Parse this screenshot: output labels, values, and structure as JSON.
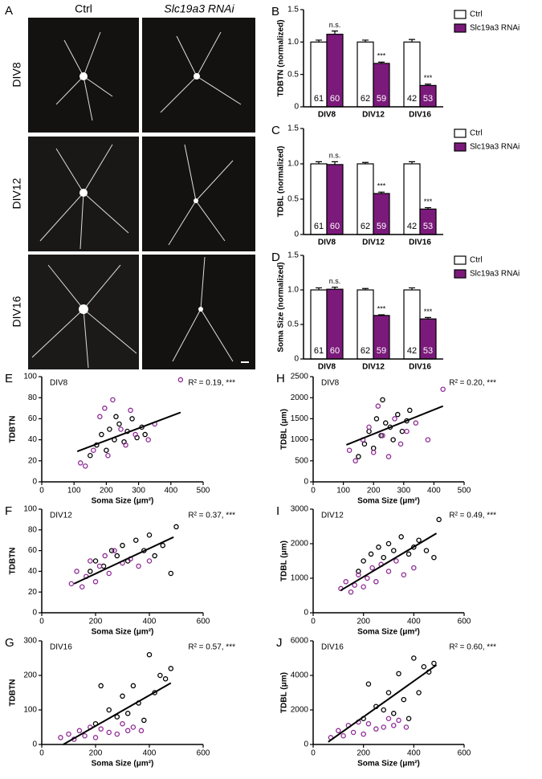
{
  "image_panel": {
    "label": "A",
    "columns": [
      "Ctrl",
      "Slc19a3 RNAi"
    ],
    "rows": [
      "DIV8",
      "DIV12",
      "DIV16"
    ]
  },
  "chart_data": [
    {
      "type": "bar",
      "label": "B",
      "ylabel": "TDBTN (normalized)",
      "categories": [
        "DIV8",
        "DIV12",
        "DIV16"
      ],
      "series": [
        {
          "name": "Ctrl",
          "color": "#ffffff",
          "values": [
            1,
            1,
            1
          ],
          "errors": [
            0.03,
            0.03,
            0.04
          ],
          "counts": [
            61,
            62,
            42
          ]
        },
        {
          "name": "Slc19a3 RNAi",
          "color": "#7b1a7b",
          "values": [
            1.12,
            0.67,
            0.33
          ],
          "errors": [
            0.05,
            0.02,
            0.02
          ],
          "counts": [
            60,
            59,
            53
          ],
          "annotations": [
            "n.s.",
            "***",
            "***"
          ]
        }
      ],
      "ylim": [
        0,
        1.5
      ],
      "yticks": [
        0,
        0.5,
        {
          "value": 1,
          "label": "1.0"
        },
        1.5
      ],
      "legend": "right"
    },
    {
      "type": "bar",
      "label": "C",
      "ylabel": "TDBL (normalized)",
      "categories": [
        "DIV8",
        "DIV12",
        "DIV16"
      ],
      "series": [
        {
          "name": "Ctrl",
          "color": "#ffffff",
          "values": [
            1,
            1,
            1
          ],
          "errors": [
            0.03,
            0.02,
            0.03
          ],
          "counts": [
            61,
            62,
            42
          ]
        },
        {
          "name": "Slc19a3 RNAi",
          "color": "#7b1a7b",
          "values": [
            0.99,
            0.58,
            0.36
          ],
          "errors": [
            0.04,
            0.02,
            0.02
          ],
          "counts": [
            60,
            59,
            53
          ],
          "annotations": [
            "n.s.",
            "***",
            "***"
          ]
        }
      ],
      "ylim": [
        0,
        1.5
      ],
      "yticks": [
        0,
        0.5,
        {
          "value": 1,
          "label": "1.0"
        },
        1.5
      ],
      "legend": "right"
    },
    {
      "type": "bar",
      "label": "D",
      "ylabel": "Soma Size (normalized)",
      "categories": [
        "DIV8",
        "DIV12",
        "DIV16"
      ],
      "series": [
        {
          "name": "Ctrl",
          "color": "#ffffff",
          "values": [
            1,
            1,
            1
          ],
          "errors": [
            0.03,
            0.02,
            0.03
          ],
          "counts": [
            61,
            62,
            42
          ]
        },
        {
          "name": "Slc19a3 RNAi",
          "color": "#7b1a7b",
          "values": [
            1.01,
            0.63,
            0.58
          ],
          "errors": [
            0.03,
            0.01,
            0.02
          ],
          "counts": [
            60,
            59,
            53
          ],
          "annotations": [
            "n.s.",
            "***",
            "***"
          ]
        }
      ],
      "ylim": [
        0,
        1.5
      ],
      "yticks": [
        0,
        0.5,
        {
          "value": 1,
          "label": "1.0"
        },
        1.5
      ],
      "legend": "right"
    },
    {
      "type": "scatter",
      "label": "E",
      "title": "DIV8",
      "annotation": "R² = 0.19, ***",
      "xlabel": "Soma Size (μm²)",
      "ylabel": "TDBTN",
      "xlim": [
        0,
        500
      ],
      "xticks": [
        0,
        100,
        200,
        300,
        400,
        500
      ],
      "ylim": [
        0,
        100
      ],
      "yticks": [
        0,
        20,
        40,
        60,
        80,
        100
      ],
      "series": [
        {
          "color": "#000000",
          "x": [
            150,
            170,
            185,
            200,
            210,
            225,
            240,
            255,
            265,
            280,
            295,
            310,
            320,
            230
          ],
          "y": [
            25,
            35,
            45,
            30,
            50,
            40,
            55,
            38,
            48,
            60,
            42,
            52,
            45,
            62
          ]
        },
        {
          "color": "#8e2a95",
          "x": [
            120,
            135,
            160,
            180,
            195,
            205,
            220,
            245,
            260,
            275,
            290,
            330,
            350,
            430
          ],
          "y": [
            18,
            15,
            30,
            62,
            70,
            25,
            78,
            50,
            35,
            68,
            45,
            40,
            55,
            97
          ]
        }
      ],
      "fit": {
        "x": [
          110,
          430
        ],
        "y": [
          29,
          66
        ]
      }
    },
    {
      "type": "scatter",
      "label": "H",
      "title": "DIV8",
      "annotation": "R² = 0.20, ***",
      "xlabel": "Soma Size (μm²)",
      "ylabel": "TDBL (μm)",
      "xlim": [
        0,
        500
      ],
      "xticks": [
        0,
        100,
        200,
        300,
        400,
        500
      ],
      "ylim": [
        0,
        2500
      ],
      "yticks": [
        0,
        500,
        1000,
        1500,
        2000,
        2500
      ],
      "series": [
        {
          "color": "#000000",
          "x": [
            150,
            170,
            185,
            200,
            210,
            225,
            240,
            255,
            265,
            280,
            295,
            310,
            320,
            230
          ],
          "y": [
            600,
            900,
            1200,
            800,
            1500,
            1100,
            1400,
            1300,
            1000,
            1600,
            1200,
            1450,
            1700,
            1950
          ]
        },
        {
          "color": "#8e2a95",
          "x": [
            120,
            140,
            165,
            185,
            200,
            215,
            230,
            250,
            270,
            290,
            310,
            340,
            380,
            430
          ],
          "y": [
            750,
            500,
            1000,
            1300,
            700,
            1800,
            1100,
            600,
            1500,
            900,
            1200,
            1400,
            1000,
            2200
          ]
        }
      ],
      "fit": {
        "x": [
          110,
          430
        ],
        "y": [
          880,
          1800
        ]
      }
    },
    {
      "type": "scatter",
      "label": "F",
      "title": "DIV12",
      "annotation": "R² = 0.37, ***",
      "xlabel": "Soma Size (μm²)",
      "ylabel": "TDBTN",
      "xlim": [
        0,
        600
      ],
      "xticks": [
        0,
        200,
        400,
        600
      ],
      "ylim": [
        0,
        100
      ],
      "yticks": [
        0,
        20,
        40,
        60,
        80,
        100
      ],
      "series": [
        {
          "color": "#000000",
          "x": [
            180,
            200,
            230,
            260,
            280,
            300,
            320,
            350,
            380,
            400,
            420,
            450,
            480,
            500
          ],
          "y": [
            40,
            50,
            45,
            60,
            55,
            65,
            50,
            70,
            60,
            75,
            55,
            65,
            38,
            83
          ]
        },
        {
          "color": "#8e2a95",
          "x": [
            110,
            130,
            150,
            165,
            180,
            200,
            215,
            235,
            250,
            270,
            300,
            330,
            360,
            400
          ],
          "y": [
            28,
            40,
            25,
            35,
            50,
            30,
            45,
            55,
            38,
            60,
            48,
            52,
            45,
            50
          ]
        }
      ],
      "fit": {
        "x": [
          120,
          490
        ],
        "y": [
          28,
          73
        ]
      }
    },
    {
      "type": "scatter",
      "label": "I",
      "title": "DIV12",
      "annotation": "R² = 0.49, ***",
      "xlabel": "Soma Size (μm²)",
      "ylabel": "TDBL (μm)",
      "xlim": [
        0,
        600
      ],
      "xticks": [
        0,
        200,
        400,
        600
      ],
      "ylim": [
        0,
        3000
      ],
      "yticks": [
        0,
        1000,
        2000,
        3000
      ],
      "series": [
        {
          "color": "#000000",
          "x": [
            180,
            200,
            230,
            260,
            280,
            300,
            320,
            350,
            380,
            400,
            420,
            450,
            480,
            500
          ],
          "y": [
            1200,
            1500,
            1700,
            1900,
            1600,
            2000,
            1800,
            2200,
            1700,
            1900,
            2100,
            1800,
            1600,
            2700
          ]
        },
        {
          "color": "#8e2a95",
          "x": [
            110,
            130,
            150,
            165,
            180,
            200,
            215,
            235,
            250,
            270,
            300,
            330,
            360,
            400
          ],
          "y": [
            700,
            900,
            600,
            800,
            1100,
            750,
            1000,
            1300,
            900,
            1400,
            1200,
            1500,
            1100,
            1300
          ]
        }
      ],
      "fit": {
        "x": [
          110,
          490
        ],
        "y": [
          650,
          2300
        ]
      }
    },
    {
      "type": "scatter",
      "label": "G",
      "title": "DIV16",
      "annotation": "R² = 0.57, ***",
      "xlabel": "Soma Size (μm²)",
      "ylabel": "TDBTN",
      "xlim": [
        0,
        600
      ],
      "xticks": [
        0,
        200,
        400,
        600
      ],
      "ylim": [
        0,
        300
      ],
      "yticks": [
        0,
        100,
        200,
        300
      ],
      "series": [
        {
          "color": "#000000",
          "x": [
            200,
            220,
            250,
            280,
            300,
            320,
            340,
            360,
            380,
            400,
            420,
            440,
            460,
            480
          ],
          "y": [
            60,
            170,
            100,
            80,
            140,
            90,
            170,
            120,
            70,
            260,
            150,
            200,
            190,
            220
          ]
        },
        {
          "color": "#8e2a95",
          "x": [
            70,
            100,
            120,
            140,
            160,
            180,
            200,
            220,
            250,
            280,
            300,
            320,
            340,
            370
          ],
          "y": [
            20,
            30,
            15,
            40,
            25,
            50,
            20,
            45,
            35,
            30,
            60,
            40,
            50,
            40
          ]
        }
      ],
      "fit": {
        "x": [
          80,
          480
        ],
        "y": [
          0,
          178
        ]
      }
    },
    {
      "type": "scatter",
      "label": "J",
      "title": "DIV16",
      "annotation": "R² = 0.60, ***",
      "xlabel": "Soma Size (μm²)",
      "ylabel": "TDBL (μm)",
      "xlim": [
        0,
        600
      ],
      "xticks": [
        0,
        200,
        400,
        600
      ],
      "ylim": [
        0,
        6000
      ],
      "yticks": [
        0,
        2000,
        4000,
        6000
      ],
      "series": [
        {
          "color": "#000000",
          "x": [
            200,
            220,
            250,
            280,
            300,
            320,
            340,
            360,
            380,
            400,
            420,
            440,
            460,
            480
          ],
          "y": [
            1500,
            3500,
            2200,
            2000,
            3000,
            1800,
            4100,
            2600,
            1500,
            5000,
            3000,
            4500,
            4200,
            4700
          ]
        },
        {
          "color": "#8e2a95",
          "x": [
            70,
            100,
            120,
            140,
            160,
            180,
            200,
            220,
            250,
            280,
            300,
            320,
            340,
            370
          ],
          "y": [
            400,
            800,
            500,
            1100,
            700,
            1300,
            600,
            1200,
            900,
            1000,
            1500,
            1100,
            1400,
            1000
          ]
        }
      ],
      "fit": {
        "x": [
          60,
          490
        ],
        "y": [
          150,
          4600
        ]
      }
    }
  ]
}
